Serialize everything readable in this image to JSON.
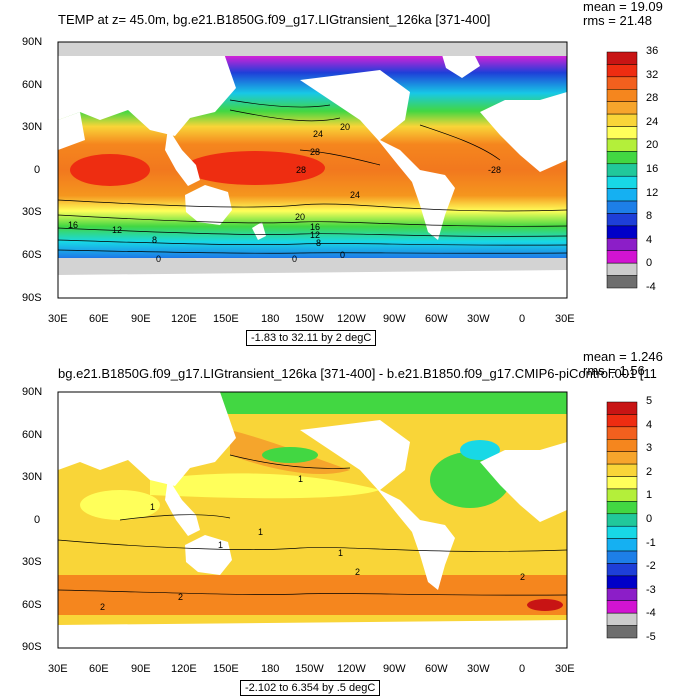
{
  "panels": [
    {
      "title": "TEMP at z=  45.0m, bg.e21.B1850G.f09_g17.LIGtransient_126ka [371-400]",
      "mean": "mean = 19.09",
      "rms": "rms = 21.48",
      "range_label": "-1.83 to 32.11 by 2 degC",
      "colorbar_labels": [
        "36",
        "32",
        "28",
        "24",
        "20",
        "16",
        "12",
        "8",
        "4",
        "0",
        "-4"
      ],
      "colorbar_colors": [
        "#c81414",
        "#ee2d11",
        "#f2601e",
        "#f5861e",
        "#f7a52c",
        "#f9d538",
        "#ffff5a",
        "#b4ef3a",
        "#42d742",
        "#21c89b",
        "#18d8e6",
        "#15b0f2",
        "#1d7fe8",
        "#1e3fd8",
        "#0000c8",
        "#8c1ec8",
        "#d214d2",
        "#cccccc",
        "#6e6e6e"
      ],
      "contour_labels": [
        "20",
        "24",
        "28",
        "28",
        "-28",
        "24",
        "20",
        "16",
        "12",
        "8",
        "0",
        "16",
        "12",
        "8",
        "0",
        "0"
      ]
    },
    {
      "title": "bg.e21.B1850G.f09_g17.LIGtransient_126ka [371-400] - b.e21.B1850.f09_g17.CMIP6-piControl.001 [11",
      "mean": "mean = 1.246",
      "rms": "rms = 1.56",
      "range_label": "-2.102 to 6.354 by .5 degC",
      "colorbar_labels": [
        "5",
        "4",
        "3",
        "2",
        "1",
        "0",
        "-1",
        "-2",
        "-3",
        "-4",
        "-5"
      ],
      "colorbar_colors": [
        "#c81414",
        "#ee2d11",
        "#f2601e",
        "#f5861e",
        "#f7a52c",
        "#f9d538",
        "#ffff5a",
        "#b4ef3a",
        "#42d742",
        "#21c89b",
        "#18d8e6",
        "#15b0f2",
        "#1d7fe8",
        "#1e3fd8",
        "#0000c8",
        "#8c1ec8",
        "#d214d2",
        "#cccccc",
        "#6e6e6e"
      ],
      "contour_labels": [
        "1",
        "1",
        "1",
        "1",
        "2",
        "2",
        "2",
        "2",
        "1"
      ]
    }
  ],
  "lat_labels": [
    "90N",
    "60N",
    "30N",
    "0",
    "30S",
    "60S",
    "90S"
  ],
  "lon_labels": [
    "30E",
    "60E",
    "90E",
    "120E",
    "150E",
    "180",
    "150W",
    "120W",
    "90W",
    "60W",
    "30W",
    "0",
    "30E"
  ],
  "colors": {
    "land": "#ffffff",
    "sea_ice": "#d3d3d3"
  }
}
